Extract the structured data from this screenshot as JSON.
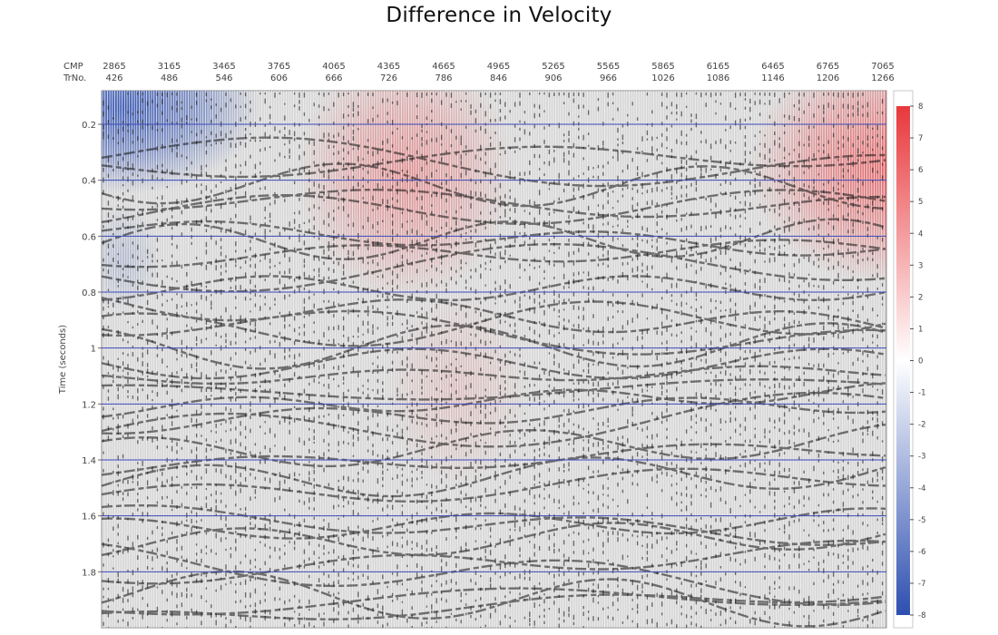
{
  "chart_data": {
    "type": "heatmap",
    "title": "Difference in Velocity",
    "ylabel": "Time (seconds)",
    "x_axis_rows": [
      {
        "label": "CMP",
        "ticks": [
          "2865",
          "3165",
          "3465",
          "3765",
          "4065",
          "4365",
          "4665",
          "4965",
          "5265",
          "5565",
          "5865",
          "6165",
          "6465",
          "6765",
          "7065"
        ]
      },
      {
        "label": "TrNo.",
        "ticks": [
          "426",
          "486",
          "546",
          "606",
          "666",
          "726",
          "786",
          "846",
          "906",
          "966",
          "1026",
          "1086",
          "1146",
          "1206",
          "1266"
        ]
      }
    ],
    "y_ticks": [
      0.2,
      0.4,
      0.6,
      0.8,
      1,
      1.2,
      1.4,
      1.6,
      1.8
    ],
    "ylim": [
      0.08,
      2.0
    ],
    "colorbar": {
      "range": [
        -8,
        8
      ],
      "ticks": [
        8,
        7,
        6,
        5,
        4,
        3,
        2,
        1,
        0,
        -1,
        -2,
        -3,
        -4,
        -5,
        -6,
        -7,
        -8
      ],
      "colors": {
        "high": "#e8383c",
        "mid": "#ffffff",
        "low": "#2e4fb0"
      }
    },
    "horizontal_gridlines_at": [
      0.2,
      0.4,
      0.6,
      0.8,
      1,
      1.2,
      1.4,
      1.6,
      1.8
    ],
    "anomalies": [
      {
        "trno": 436,
        "time": 0.14,
        "value": -8
      },
      {
        "trno": 744,
        "time": 0.38,
        "value": 4
      },
      {
        "trno": 1268,
        "time": 0.35,
        "value": 6
      },
      {
        "trno": 800,
        "time": 1.15,
        "value": 1.5
      },
      {
        "trno": 436,
        "time": 0.68,
        "value": -2
      }
    ]
  }
}
